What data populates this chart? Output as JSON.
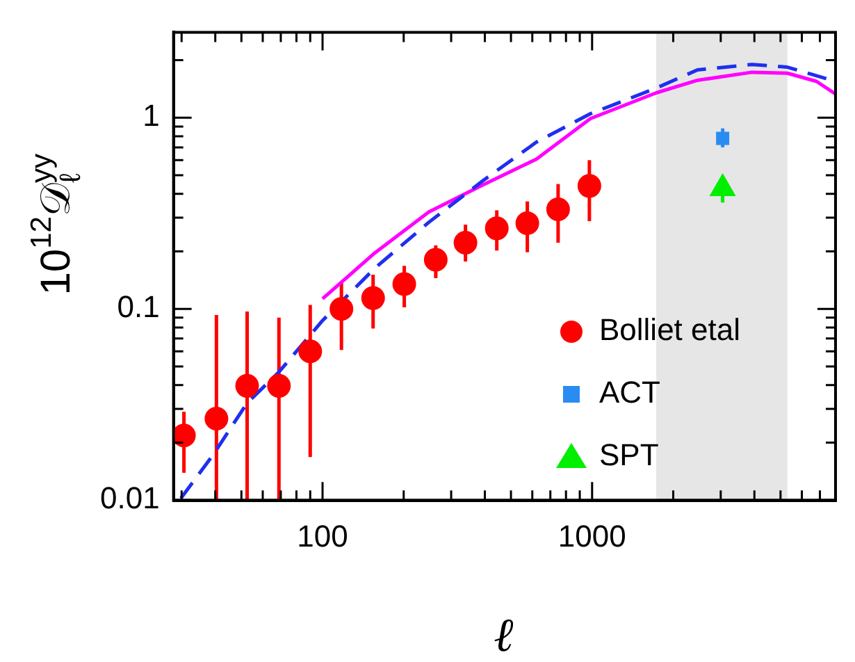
{
  "chart_data": {
    "type": "scatter",
    "xlabel": "ℓ",
    "ylabel": "10$^{12}$𝒟$_{ℓ}$$^{yy}$",
    "log": "xy",
    "grid": false,
    "legend": "right",
    "xlim": [
      28,
      8000
    ],
    "ylim": [
      0.01,
      2.8
    ],
    "xticks": [
      {
        "value": 30,
        "label": null
      },
      {
        "value": 40,
        "label": null
      },
      {
        "value": 50,
        "label": null
      },
      {
        "value": 60,
        "label": null
      },
      {
        "value": 70,
        "label": null
      },
      {
        "value": 80,
        "label": null
      },
      {
        "value": 90,
        "label": null
      },
      100,
      {
        "value": 200,
        "label": null
      },
      {
        "value": 300,
        "label": null
      },
      {
        "value": 400,
        "label": null
      },
      {
        "value": 500,
        "label": null
      },
      {
        "value": 600,
        "label": null
      },
      {
        "value": 700,
        "label": null
      },
      {
        "value": 800,
        "label": null
      },
      {
        "value": 900,
        "label": null
      },
      1000,
      {
        "value": 2000,
        "label": null
      },
      {
        "value": 3000,
        "label": null
      },
      {
        "value": 4000,
        "label": null
      },
      {
        "value": 5000,
        "label": null
      },
      {
        "value": 6000,
        "label": null
      },
      {
        "value": 7000,
        "label": null
      },
      {
        "value": 8000,
        "label": null
      }
    ],
    "yticks": [
      0.01,
      {
        "value": 0.02,
        "label": null
      },
      {
        "value": 0.03,
        "label": null
      },
      {
        "value": 0.04,
        "label": null
      },
      {
        "value": 0.05,
        "label": null
      },
      {
        "value": 0.06,
        "label": null
      },
      {
        "value": 0.07,
        "label": null
      },
      {
        "value": 0.08,
        "label": null
      },
      {
        "value": 0.09,
        "label": null
      },
      0.1,
      {
        "value": 0.2,
        "label": null
      },
      {
        "value": 0.3,
        "label": null
      },
      {
        "value": 0.4,
        "label": null
      },
      {
        "value": 0.5,
        "label": null
      },
      {
        "value": 0.6,
        "label": null
      },
      {
        "value": 0.7,
        "label": null
      },
      {
        "value": 0.8,
        "label": null
      },
      {
        "value": 0.9,
        "label": null
      },
      1,
      {
        "value": 2,
        "label": null
      }
    ],
    "bands": [
      {
        "axis": "x",
        "from": 1730,
        "to": 5300,
        "color": "#e6e6e6"
      }
    ],
    "series": [
      {
        "type": "line",
        "color": "#ff00ff",
        "line_style": "solid",
        "marker": "none",
        "x": [
          100,
          156,
          248,
          393,
          622,
          986,
          1730,
          2460,
          3920,
          5300,
          6800,
          8000
        ],
        "values": [
          0.113,
          0.196,
          0.322,
          0.445,
          0.608,
          0.99,
          1.35,
          1.57,
          1.73,
          1.71,
          1.55,
          1.33
        ]
      },
      {
        "type": "line",
        "color": "#1f2fef",
        "line_style": "dashed",
        "marker": "none",
        "x": [
          29.8,
          39.3,
          52.5,
          68.9,
          100,
          156,
          248,
          393,
          622,
          986,
          1730,
          2460,
          3920,
          5300,
          8000
        ],
        "values": [
          0.0102,
          0.0173,
          0.0322,
          0.0468,
          0.087,
          0.163,
          0.284,
          0.468,
          0.746,
          1.05,
          1.43,
          1.78,
          1.9,
          1.84,
          1.55
        ]
      },
      {
        "name": "Bolliet etal",
        "color": "#ff0000",
        "marker": "circle",
        "x": [
          30.6,
          40.4,
          52.5,
          68.9,
          90,
          117.5,
          154,
          201,
          263,
          339,
          443,
          575,
          748,
          977
        ],
        "values": [
          0.0218,
          0.0267,
          0.0396,
          0.0396,
          0.06,
          0.1,
          0.114,
          0.135,
          0.181,
          0.222,
          0.264,
          0.281,
          0.332,
          0.44
        ],
        "errors": [
          [
            0.0139,
            0.029
          ],
          [
            0.01,
            0.093
          ],
          [
            0.01,
            0.097
          ],
          [
            0.01,
            0.09
          ],
          [
            0.0168,
            0.105
          ],
          [
            0.061,
            0.139
          ],
          [
            0.079,
            0.151
          ],
          [
            0.102,
            0.168
          ],
          [
            0.145,
            0.215
          ],
          [
            0.177,
            0.276
          ],
          [
            0.202,
            0.328
          ],
          [
            0.198,
            0.365
          ],
          [
            0.222,
            0.45
          ],
          [
            0.288,
            0.6
          ]
        ]
      },
      {
        "name": "ACT",
        "color": "#2a8cf0",
        "marker": "square",
        "x": [
          3050
        ],
        "values": [
          0.78
        ],
        "errors": [
          [
            0.7,
            0.88
          ]
        ]
      },
      {
        "name": "SPT",
        "color": "#00ee00",
        "marker": "triangle",
        "x": [
          3050
        ],
        "values": [
          0.427
        ],
        "errors": [
          [
            0.36,
            0.455
          ]
        ]
      }
    ]
  }
}
